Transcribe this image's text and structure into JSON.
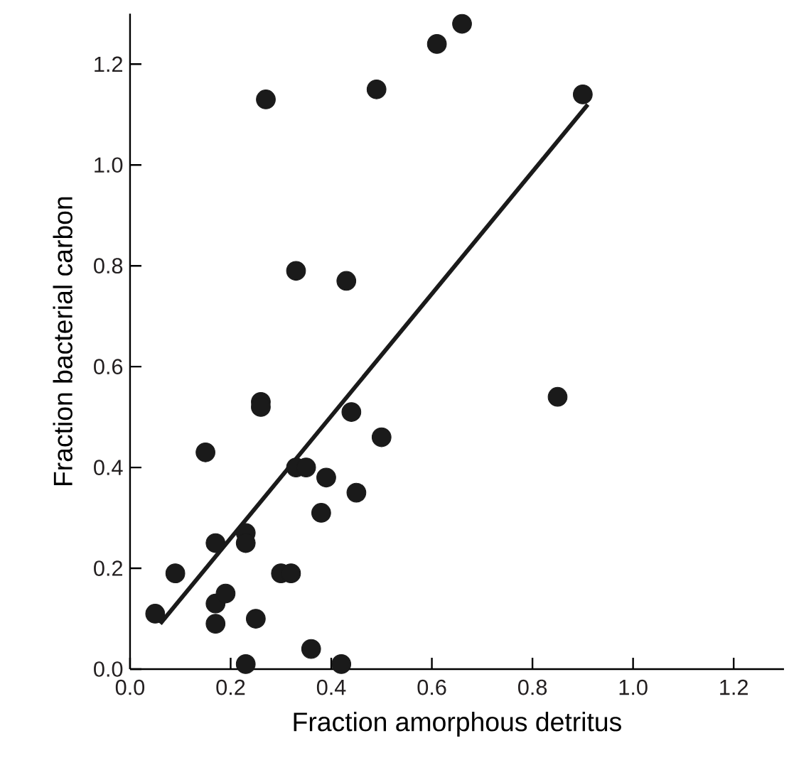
{
  "chart_data": {
    "type": "scatter",
    "xlabel": "Fraction amorphous detritus",
    "ylabel": "Fraction bacterial carbon",
    "xlim": [
      0,
      1.3
    ],
    "ylim": [
      0,
      1.3
    ],
    "xticks": [
      {
        "value": 0,
        "label": "0.0"
      },
      {
        "value": 0.2,
        "label": "0.2"
      },
      {
        "value": 0.4,
        "label": "0.4"
      },
      {
        "value": 0.6,
        "label": "0.6"
      },
      {
        "value": 0.8,
        "label": "0.8"
      },
      {
        "value": 1.0,
        "label": "1.0"
      },
      {
        "value": 1.2,
        "label": "1.2"
      }
    ],
    "yticks": [
      {
        "value": 0,
        "label": "0.0"
      },
      {
        "value": 0.2,
        "label": "0.2"
      },
      {
        "value": 0.4,
        "label": "0.4"
      },
      {
        "value": 0.6,
        "label": "0.6"
      },
      {
        "value": 0.8,
        "label": "0.8"
      },
      {
        "value": 1.0,
        "label": "1.0"
      },
      {
        "value": 1.2,
        "label": "1.2"
      }
    ],
    "series": [
      {
        "marker": "circle",
        "color": "#1a1a1a",
        "x": [
          0.05,
          0.09,
          0.15,
          0.17,
          0.17,
          0.17,
          0.19,
          0.23,
          0.23,
          0.23,
          0.25,
          0.26,
          0.26,
          0.3,
          0.32,
          0.33,
          0.35,
          0.36,
          0.38,
          0.39,
          0.42,
          0.44,
          0.45,
          0.5,
          0.85,
          0.27,
          0.33,
          0.43,
          0.49,
          0.61,
          0.66,
          0.9
        ],
        "values": [
          0.11,
          0.19,
          0.43,
          0.25,
          0.13,
          0.09,
          0.15,
          0.01,
          0.27,
          0.25,
          0.1,
          0.53,
          0.52,
          0.19,
          0.19,
          0.4,
          0.4,
          0.04,
          0.31,
          0.38,
          0.01,
          0.51,
          0.35,
          0.46,
          0.54,
          1.13,
          0.79,
          0.77,
          1.15,
          1.24,
          1.28,
          1.14
        ]
      },
      {
        "type": "line",
        "marker": "none",
        "color": "#1a1a1a",
        "x": [
          0.06,
          0.91
        ],
        "values": [
          0.09,
          1.12
        ]
      }
    ]
  }
}
